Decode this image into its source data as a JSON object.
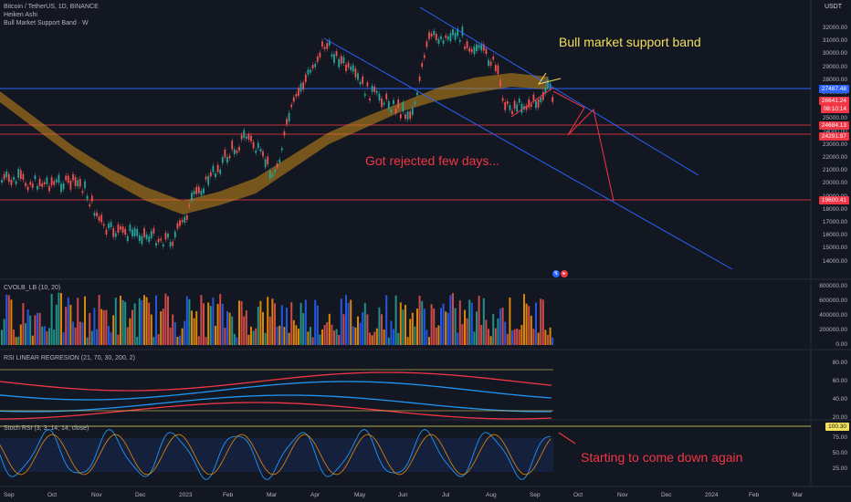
{
  "legend": {
    "symbol": "Bitcoin / TetherUS, 1D, BINANCE",
    "chart_type": "Heiken Ashi",
    "indicator": "Bull Market Support Band · W"
  },
  "axis_unit": "USDT",
  "price_ticks": [
    "32000.00",
    "31000.00",
    "30000.00",
    "29000.00",
    "28000.00",
    "27000.00",
    "26000.00",
    "25000.00",
    "24000.00",
    "23000.00",
    "22000.00",
    "21000.00",
    "20000.00",
    "19000.00",
    "18000.00",
    "17000.00",
    "16000.00",
    "15000.00",
    "14000.00"
  ],
  "price_tags": [
    {
      "label": "27487.48",
      "bg": "#2962ff",
      "fg": "#ffffff"
    },
    {
      "label": "26641.24",
      "bg": "#f23645",
      "fg": "#ffffff"
    },
    {
      "label": "08:10:14",
      "bg": "#f23645",
      "fg": "#ffffff"
    },
    {
      "label": "24684.13",
      "bg": "#f23645",
      "fg": "#ffffff"
    },
    {
      "label": "24291.97",
      "bg": "#f23645",
      "fg": "#ffffff"
    },
    {
      "label": "19600.41",
      "bg": "#f23645",
      "fg": "#ffffff"
    }
  ],
  "annotations": {
    "support_band": "Bull market support band",
    "rejected": "Got rejected few days...",
    "stoch_note": "Starting to come down again"
  },
  "panes": {
    "volume": {
      "title": "CVOLB_LB (10, 20)",
      "ticks": [
        "800000.00",
        "600000.00",
        "400000.00",
        "200000.00",
        "0.00"
      ]
    },
    "rsi": {
      "title": "RSI LINEAR REGRESION (21, 70, 30, 200, 2)",
      "ticks": [
        "80.00",
        "60.00",
        "40.00",
        "20.00"
      ]
    },
    "stoch": {
      "title": "Stoch RSI (3, 3, 14, 14, close)",
      "ticks": [
        "75.00",
        "50.00",
        "25.00"
      ],
      "tag": "100.30"
    }
  },
  "x_ticks": [
    "Sep",
    "Oct",
    "Nov",
    "Dec",
    "2023",
    "Feb",
    "Mar",
    "Apr",
    "May",
    "Jun",
    "Jul",
    "Aug",
    "Sep",
    "Oct",
    "Nov",
    "Dec",
    "2024",
    "Feb",
    "Mar"
  ],
  "colors": {
    "up": "#26a69a",
    "down": "#ef5350",
    "band": "#c98a1a",
    "blue_line": "#2962ff",
    "red_line": "#f23645",
    "annotation_yellow": "#f2e05c"
  }
}
